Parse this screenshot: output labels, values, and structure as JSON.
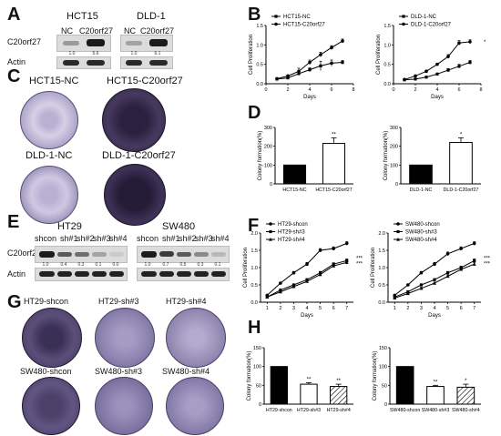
{
  "panels": {
    "A": "A",
    "B": "B",
    "C": "C",
    "D": "D",
    "E": "E",
    "F": "F",
    "G": "G",
    "H": "H"
  },
  "blotA": {
    "groups": [
      "HCT15",
      "DLD-1"
    ],
    "lanes": [
      [
        "NC",
        "C20orf27"
      ],
      [
        "NC",
        "C20orf27"
      ]
    ],
    "rows": [
      "C20orf27",
      "Actin"
    ],
    "quant": [
      [
        "1.0",
        "5.6"
      ],
      [
        "1.0",
        "6.1"
      ]
    ]
  },
  "blotE": {
    "groups": [
      "HT29",
      "SW480"
    ],
    "lanes": [
      [
        "shcon",
        "sh#1",
        "sh#2",
        "sh#3",
        "sh#4"
      ],
      [
        "shcon",
        "sh#1",
        "sh#2",
        "sh#3",
        "sh#4"
      ]
    ],
    "rows": [
      "C20orf27",
      "Actin"
    ],
    "quant": [
      [
        "1.0",
        "0.4",
        "0.3",
        "0.1",
        "0.0"
      ],
      [
        "1.0",
        "0.7",
        "0.5",
        "0.3",
        "0.1"
      ]
    ]
  },
  "dishesC": [
    "HCT15-NC",
    "HCT15-C20orf27",
    "DLD-1-NC",
    "DLD-1-C20orf27"
  ],
  "dishesG": [
    "HT29-shcon",
    "HT29-sh#3",
    "HT29-sh#4",
    "SW480-shcon",
    "SW480-sh#3",
    "SW480-sh#4"
  ],
  "colors": {
    "black": "#000000",
    "dish_light": "#c9c3dc",
    "dish_dark": "#3a2f55"
  },
  "chart_data": [
    {
      "id": "B1",
      "type": "line",
      "xlabel": "Days",
      "ylabel": "Cell Proliferation",
      "x": [
        1,
        2,
        3,
        4,
        5,
        6,
        7
      ],
      "xticks": [
        0,
        2,
        4,
        6,
        8
      ],
      "xlim": [
        0,
        8
      ],
      "yticks": [
        0.0,
        0.5,
        1.0,
        1.5
      ],
      "ylim": [
        0,
        1.5
      ],
      "legend": "top-left",
      "series": [
        {
          "name": "HCT15-NC",
          "values": [
            0.12,
            0.15,
            0.26,
            0.36,
            0.46,
            0.53,
            0.55
          ],
          "err": [
            0.02,
            0.03,
            0.04,
            0.05,
            0.12,
            0.08,
            0.05
          ],
          "marker": "square"
        },
        {
          "name": "HCT15-C20orf27",
          "values": [
            0.13,
            0.2,
            0.32,
            0.55,
            0.75,
            0.93,
            1.1
          ],
          "err": [
            0.02,
            0.03,
            0.08,
            0.06,
            0.06,
            0.05,
            0.05
          ],
          "marker": "circle"
        }
      ],
      "annotations": []
    },
    {
      "id": "B2",
      "type": "line",
      "xlabel": "Days",
      "ylabel": "Cell Proliferation",
      "x": [
        1,
        2,
        3,
        4,
        5,
        6,
        7
      ],
      "xticks": [
        0,
        2,
        4,
        6,
        8
      ],
      "xlim": [
        0,
        8
      ],
      "yticks": [
        0.0,
        0.5,
        1.0,
        1.5
      ],
      "ylim": [
        0,
        1.5
      ],
      "legend": "top-left",
      "series": [
        {
          "name": "DLD-1-NC",
          "values": [
            0.1,
            0.12,
            0.17,
            0.25,
            0.35,
            0.45,
            0.55
          ],
          "err": [
            0.01,
            0.02,
            0.02,
            0.02,
            0.04,
            0.05,
            0.05
          ],
          "marker": "square"
        },
        {
          "name": "DLD-1-C20orf27",
          "values": [
            0.11,
            0.2,
            0.32,
            0.5,
            0.7,
            1.05,
            1.08
          ],
          "err": [
            0.01,
            0.02,
            0.03,
            0.03,
            0.05,
            0.06,
            0.05
          ],
          "marker": "circle"
        }
      ],
      "annotations": [
        "*"
      ]
    },
    {
      "id": "D1",
      "type": "bar",
      "ylabel": "Colony formation(%)",
      "categories": [
        "HCT15-NC",
        "HCT15-C20orf27"
      ],
      "values": [
        100,
        215
      ],
      "err": [
        0,
        30
      ],
      "fill": [
        "black",
        "white"
      ],
      "yticks": [
        0,
        100,
        200,
        300
      ],
      "ylim": [
        0,
        300
      ],
      "annotations": [
        "**"
      ]
    },
    {
      "id": "D2",
      "type": "bar",
      "ylabel": "Colony formation(%)",
      "categories": [
        "DLD-1-NC",
        "DLD-1-C20orf27"
      ],
      "values": [
        100,
        220
      ],
      "err": [
        0,
        25
      ],
      "fill": [
        "black",
        "white"
      ],
      "yticks": [
        0,
        100,
        200,
        300
      ],
      "ylim": [
        0,
        300
      ],
      "annotations": [
        "*"
      ]
    },
    {
      "id": "F1",
      "type": "line",
      "xlabel": "Days",
      "ylabel": "Cell Proliferation",
      "x": [
        1,
        2,
        3,
        4,
        5,
        6,
        7
      ],
      "xticks": [
        1,
        2,
        3,
        4,
        5,
        6,
        7
      ],
      "xlim": [
        0.5,
        7.5
      ],
      "yticks": [
        0.0,
        0.5,
        1.0,
        1.5,
        2.0
      ],
      "ylim": [
        0,
        2.0
      ],
      "legend": "top-left",
      "series": [
        {
          "name": "HT29-shcon",
          "values": [
            0.2,
            0.55,
            0.85,
            1.1,
            1.5,
            1.55,
            1.7
          ],
          "err": [
            0.02,
            0.03,
            0.04,
            0.05,
            0.05,
            0.05,
            0.05
          ],
          "marker": "circle"
        },
        {
          "name": "HT29-sh#3",
          "values": [
            0.15,
            0.35,
            0.5,
            0.65,
            0.85,
            1.1,
            1.2
          ],
          "err": [
            0.02,
            0.02,
            0.03,
            0.03,
            0.04,
            0.04,
            0.05
          ],
          "marker": "square"
        },
        {
          "name": "HT29-sh#4",
          "values": [
            0.15,
            0.3,
            0.45,
            0.6,
            0.8,
            1.05,
            1.15
          ],
          "err": [
            0.02,
            0.02,
            0.03,
            0.03,
            0.04,
            0.04,
            0.05
          ],
          "marker": "triangle"
        }
      ],
      "annotations": [
        "***",
        "***"
      ]
    },
    {
      "id": "F2",
      "type": "line",
      "xlabel": "Days",
      "ylabel": "Cell Proliferation",
      "x": [
        1,
        2,
        3,
        4,
        5,
        6,
        7
      ],
      "xticks": [
        1,
        2,
        3,
        4,
        5,
        6,
        7
      ],
      "xlim": [
        0.5,
        7.5
      ],
      "yticks": [
        0.0,
        0.5,
        1.0,
        1.5,
        2.0
      ],
      "ylim": [
        0,
        2.0
      ],
      "legend": "top-left",
      "series": [
        {
          "name": "SW480-shcon",
          "values": [
            0.2,
            0.5,
            0.85,
            1.1,
            1.4,
            1.55,
            1.7
          ],
          "err": [
            0.02,
            0.03,
            0.04,
            0.05,
            0.05,
            0.05,
            0.05
          ],
          "marker": "circle"
        },
        {
          "name": "SW480-sh#3",
          "values": [
            0.15,
            0.3,
            0.5,
            0.65,
            0.85,
            1.0,
            1.2
          ],
          "err": [
            0.02,
            0.02,
            0.03,
            0.03,
            0.04,
            0.04,
            0.05
          ],
          "marker": "square"
        },
        {
          "name": "SW480-sh#4",
          "values": [
            0.12,
            0.25,
            0.4,
            0.55,
            0.75,
            0.95,
            1.1
          ],
          "err": [
            0.02,
            0.02,
            0.03,
            0.03,
            0.04,
            0.04,
            0.05
          ],
          "marker": "triangle"
        }
      ],
      "annotations": [
        "***",
        "***"
      ]
    },
    {
      "id": "H1",
      "type": "bar",
      "ylabel": "Colony formation(%)",
      "categories": [
        "HT29-shcon",
        "HT29-sh#3",
        "HT29-sh#4"
      ],
      "values": [
        100,
        53,
        47
      ],
      "err": [
        0,
        4,
        6
      ],
      "fill": [
        "black",
        "white",
        "hatch"
      ],
      "yticks": [
        0,
        50,
        100,
        150
      ],
      "ylim": [
        0,
        150
      ],
      "annotations": [
        "**",
        "**"
      ]
    },
    {
      "id": "H2",
      "type": "bar",
      "ylabel": "Colony formation(%)",
      "categories": [
        "SW480-shcon",
        "SW480-sh#3",
        "SW480-sh#4"
      ],
      "values": [
        100,
        47,
        45
      ],
      "err": [
        0,
        3,
        8
      ],
      "fill": [
        "black",
        "white",
        "hatch"
      ],
      "yticks": [
        0,
        50,
        100,
        150
      ],
      "ylim": [
        0,
        150
      ],
      "annotations": [
        "**",
        "*"
      ]
    }
  ]
}
